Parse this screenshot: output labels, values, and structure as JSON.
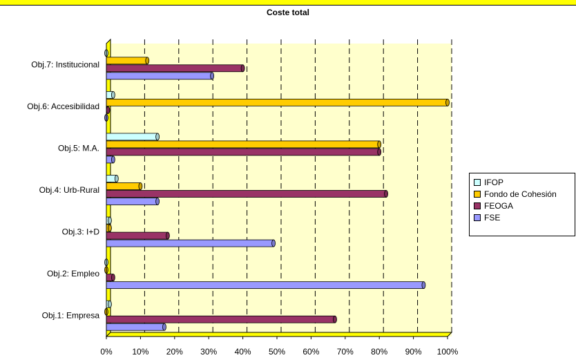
{
  "chart_data": {
    "type": "bar",
    "orientation": "horizontal",
    "title": "Coste total",
    "categories": [
      "Obj.1: Empresa",
      "Obj.2: Empleo",
      "Obj.3: I+D",
      "Obj.4: Urb-Rural",
      "Obj.5: M.A.",
      "Obj.6: Accesibilidad",
      "Obj.7: Institucional"
    ],
    "series": [
      {
        "name": "FSE",
        "color": "#9999ff",
        "values": [
          17,
          93,
          49,
          15,
          2,
          0,
          31
        ]
      },
      {
        "name": "FEOGA",
        "color": "#993366",
        "values": [
          67,
          2,
          18,
          82,
          80,
          0.5,
          40
        ]
      },
      {
        "name": "Fondo de Cohesión",
        "color": "#ffcc00",
        "values": [
          0,
          0,
          1,
          10,
          80,
          100,
          12
        ]
      },
      {
        "name": "IFOP",
        "color": "#ccffff",
        "values": [
          1,
          0,
          1,
          3,
          15,
          2,
          0
        ]
      }
    ],
    "xaxis_ticks": [
      "0%",
      "10%",
      "20%",
      "30%",
      "40%",
      "50%",
      "60%",
      "70%",
      "80%",
      "90%",
      "100%"
    ],
    "xlim": [
      0,
      100
    ],
    "grid": "vertical dashed",
    "legend_position": "right",
    "legend_order": [
      "IFOP",
      "Fondo de Cohesión",
      "FEOGA",
      "FSE"
    ]
  }
}
